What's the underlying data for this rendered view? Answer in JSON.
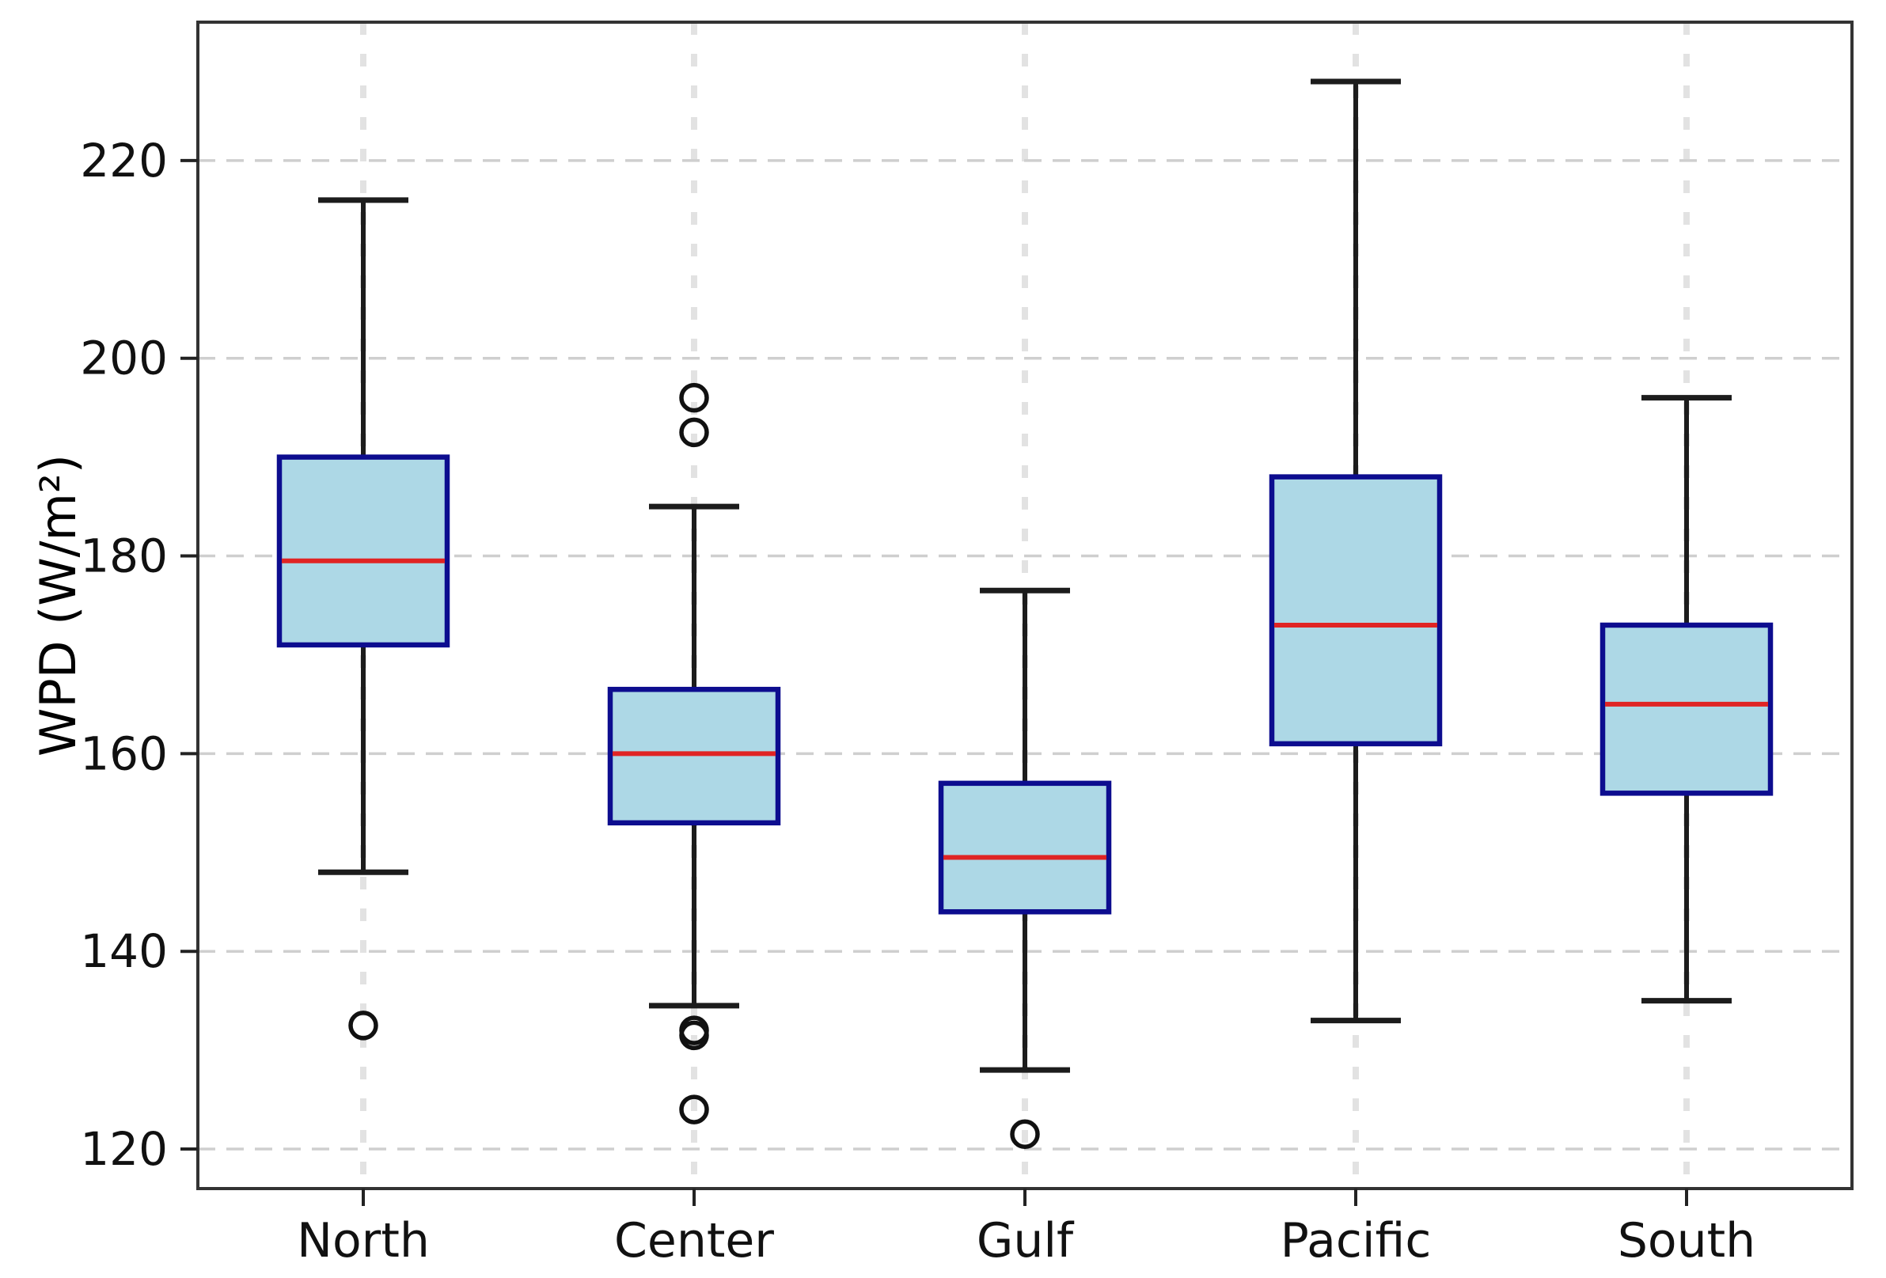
{
  "figure": {
    "title": "",
    "background": "#ffffff"
  },
  "chart_data": {
    "type": "boxplot",
    "title": "",
    "xlabel": "",
    "ylabel": "WPD (W/m²)",
    "categories": [
      "North",
      "Center",
      "Gulf",
      "Pacific",
      "South"
    ],
    "yticks": [
      120,
      140,
      160,
      180,
      200,
      220
    ],
    "ytick_labels": [
      "120",
      "140",
      "160",
      "180",
      "200",
      "220"
    ],
    "ylim": [
      116,
      234
    ],
    "grid": "both, dashed",
    "legend_position": "none",
    "series": [
      {
        "name": "North",
        "whislo": 148,
        "q1": 171,
        "med": 179.5,
        "q3": 190,
        "whishi": 216,
        "outliers": [
          132.5
        ]
      },
      {
        "name": "Center",
        "whislo": 134.5,
        "q1": 153,
        "med": 160,
        "q3": 166.5,
        "whishi": 185,
        "outliers": [
          196,
          192.5,
          132,
          131.5,
          124
        ]
      },
      {
        "name": "Gulf",
        "whislo": 128,
        "q1": 144,
        "med": 149.5,
        "q3": 157,
        "whishi": 176.5,
        "outliers": [
          121.5
        ]
      },
      {
        "name": "Pacific",
        "whislo": 133,
        "q1": 161,
        "med": 173,
        "q3": 188,
        "whishi": 228,
        "outliers": []
      },
      {
        "name": "South",
        "whislo": 135,
        "q1": 156,
        "med": 165,
        "q3": 173,
        "whishi": 196,
        "outliers": []
      }
    ],
    "style": {
      "box_fill": "#ADD8E6",
      "box_edge": "#0D0D8F",
      "median_color": "#E02424",
      "whisker_color": "#1C1C1C",
      "outlier_edge": "#111111",
      "y_grid_color": "#CFCFCF",
      "x_grid_color": "#E2E2E2",
      "spine_color": "#333333",
      "tick_label_color": "#111111"
    }
  }
}
